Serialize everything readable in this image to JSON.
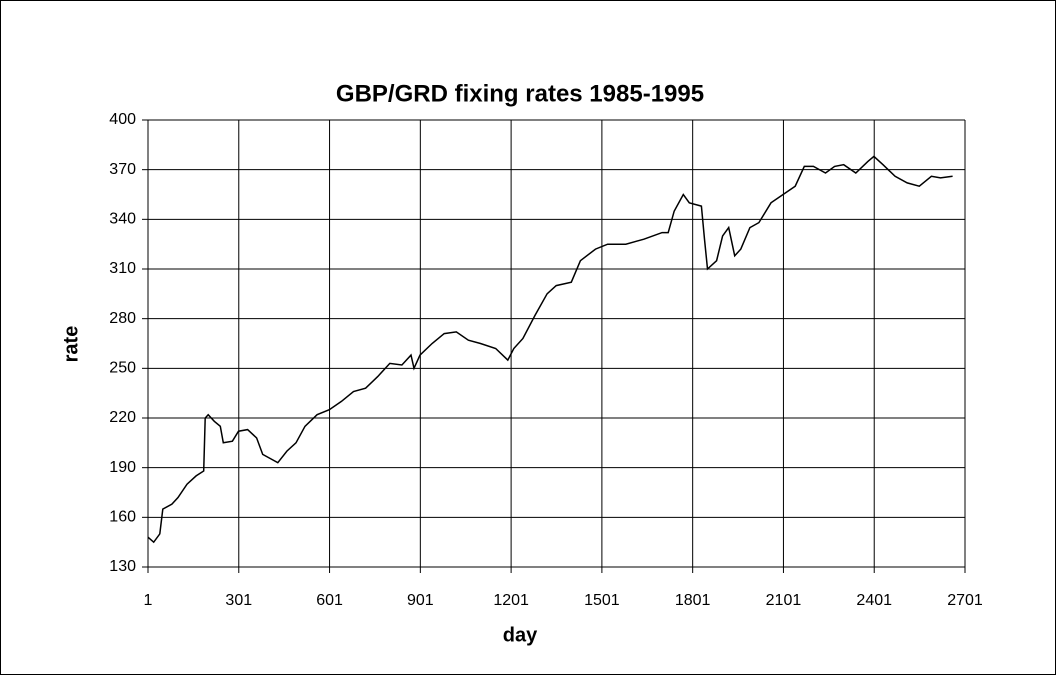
{
  "chart_data": {
    "type": "line",
    "title": "GBP/GRD fixing rates 1985-1995",
    "x_label": "day",
    "y_label": "rate",
    "xlim": [
      1,
      2701
    ],
    "xticks": [
      1,
      301,
      601,
      901,
      1201,
      1501,
      1801,
      2101,
      2401,
      2701
    ],
    "ylim": [
      130,
      400
    ],
    "yticks": [
      130,
      160,
      190,
      220,
      250,
      280,
      310,
      340,
      370,
      400
    ],
    "grid": true,
    "x": [
      1,
      20,
      40,
      50,
      80,
      100,
      130,
      160,
      185,
      190,
      200,
      220,
      240,
      250,
      280,
      300,
      330,
      360,
      380,
      410,
      430,
      460,
      490,
      520,
      560,
      600,
      640,
      680,
      720,
      760,
      800,
      840,
      870,
      880,
      900,
      940,
      980,
      1020,
      1060,
      1100,
      1150,
      1190,
      1210,
      1240,
      1280,
      1320,
      1350,
      1400,
      1430,
      1480,
      1520,
      1580,
      1640,
      1700,
      1720,
      1740,
      1770,
      1790,
      1830,
      1840,
      1850,
      1880,
      1900,
      1920,
      1940,
      1960,
      1990,
      2020,
      2060,
      2100,
      2140,
      2170,
      2200,
      2240,
      2270,
      2300,
      2340,
      2380,
      2400,
      2430,
      2470,
      2510,
      2550,
      2590,
      2620,
      2660
    ],
    "series": [
      {
        "name": "rate",
        "color": "#000000",
        "values": [
          148,
          145,
          150,
          165,
          168,
          172,
          180,
          185,
          188,
          220,
          222,
          218,
          215,
          205,
          206,
          212,
          213,
          208,
          198,
          195,
          193,
          200,
          205,
          215,
          222,
          225,
          230,
          236,
          238,
          245,
          253,
          252,
          258,
          250,
          258,
          265,
          271,
          272,
          267,
          265,
          262,
          255,
          262,
          268,
          282,
          295,
          300,
          302,
          315,
          322,
          325,
          325,
          328,
          332,
          332,
          345,
          355,
          350,
          348,
          328,
          310,
          315,
          330,
          335,
          318,
          322,
          335,
          338,
          350,
          355,
          360,
          372,
          372,
          368,
          372,
          373,
          368,
          375,
          378,
          373,
          366,
          362,
          360,
          366,
          365,
          366
        ]
      }
    ]
  }
}
